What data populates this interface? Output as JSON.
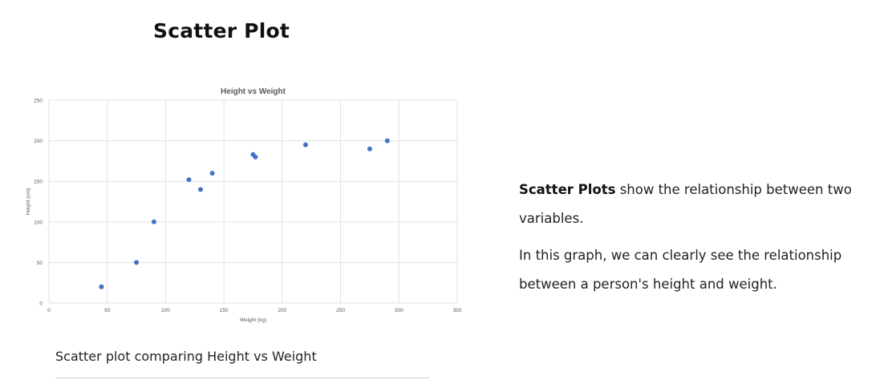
{
  "page": {
    "heading": "Scatter Plot",
    "caption": "Scatter plot comparing Height vs Weight",
    "description": {
      "p1_bold": "Scatter Plots",
      "p1_rest": " show the relationship between two variables.",
      "p2": "In this graph, we can clearly see the relationship between a person's height and weight."
    }
  },
  "colors": {
    "marker": "#4472C4",
    "gridline": "#e3e3e3",
    "axis_text": "#595959"
  },
  "chart_data": {
    "type": "scatter",
    "title": "Height vs Weight",
    "xlabel": "Weight (kg)",
    "ylabel": "Height (cm)",
    "xlim": [
      0,
      350
    ],
    "ylim": [
      0,
      250
    ],
    "xticks": [
      0,
      50,
      100,
      150,
      200,
      250,
      300,
      350
    ],
    "yticks": [
      0,
      50,
      100,
      150,
      200,
      250
    ],
    "grid": true,
    "legend": "none",
    "points": [
      {
        "x": 45,
        "y": 20
      },
      {
        "x": 75,
        "y": 50
      },
      {
        "x": 90,
        "y": 100
      },
      {
        "x": 120,
        "y": 152
      },
      {
        "x": 130,
        "y": 140
      },
      {
        "x": 140,
        "y": 160
      },
      {
        "x": 175,
        "y": 183
      },
      {
        "x": 177,
        "y": 180
      },
      {
        "x": 220,
        "y": 195
      },
      {
        "x": 275,
        "y": 190
      },
      {
        "x": 290,
        "y": 200
      }
    ]
  }
}
